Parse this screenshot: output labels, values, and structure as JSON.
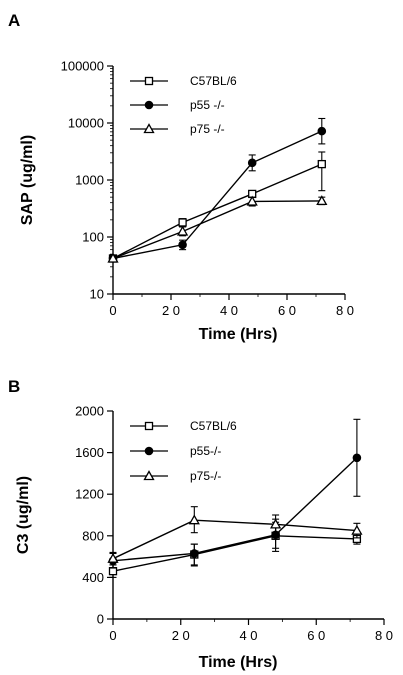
{
  "chart_data": [
    {
      "type": "line",
      "panel": "A",
      "xlabel": "Time (Hrs)",
      "ylabel": "SAP (ug/ml)",
      "xscale": "linear",
      "yscale": "log",
      "xlim": [
        0,
        80
      ],
      "ylim": [
        10,
        100000
      ],
      "xticks": [
        0,
        20,
        40,
        60,
        80
      ],
      "xtick_labels": [
        "0",
        "2 0",
        "4 0",
        "6 0",
        "8 0"
      ],
      "yticks": [
        10,
        100,
        1000,
        10000,
        100000
      ],
      "ytick_labels": [
        "10",
        "100",
        "1000",
        "10000",
        "100000"
      ],
      "legend_position": "top-left",
      "grid": false,
      "series": [
        {
          "name": "C57BL/6",
          "marker": "open-square",
          "x": [
            0,
            24,
            48,
            72
          ],
          "y": [
            42,
            180,
            570,
            1900
          ],
          "err_lo": [
            null,
            150,
            null,
            650
          ],
          "err_hi": [
            null,
            210,
            null,
            3100
          ]
        },
        {
          "name": "p55 -/-",
          "marker": "filled-circle",
          "x": [
            0,
            24,
            48,
            72
          ],
          "y": [
            42,
            73,
            2000,
            7200
          ],
          "err_lo": [
            null,
            60,
            1450,
            4300
          ],
          "err_hi": [
            null,
            88,
            2750,
            12000
          ]
        },
        {
          "name": "p75 -/-",
          "marker": "open-triangle",
          "x": [
            0,
            24,
            48,
            72
          ],
          "y": [
            42,
            125,
            420,
            430
          ],
          "err_lo": [
            null,
            105,
            350,
            370
          ],
          "err_hi": [
            null,
            150,
            500,
            500
          ]
        }
      ]
    },
    {
      "type": "line",
      "panel": "B",
      "xlabel": "Time (Hrs)",
      "ylabel": "C3 (ug/ml)",
      "xscale": "linear",
      "yscale": "linear",
      "xlim": [
        0,
        80
      ],
      "ylim": [
        0,
        2000
      ],
      "xticks": [
        0,
        20,
        40,
        60,
        80
      ],
      "xtick_labels": [
        "0",
        "2 0",
        "4 0",
        "6 0",
        "8 0"
      ],
      "yticks": [
        0,
        400,
        800,
        1200,
        1600,
        2000
      ],
      "ytick_labels": [
        "0",
        "400",
        "800",
        "1200",
        "1600",
        "2000"
      ],
      "legend_position": "top-left",
      "grid": false,
      "series": [
        {
          "name": "C57BL/6",
          "marker": "open-square",
          "x": [
            0,
            24,
            48,
            72
          ],
          "y": [
            460,
            620,
            800,
            770
          ],
          "err_lo": [
            400,
            510,
            680,
            720
          ],
          "err_hi": [
            520,
            720,
            930,
            830
          ]
        },
        {
          "name": "p55-/-",
          "marker": "filled-circle",
          "x": [
            0,
            24,
            48,
            72
          ],
          "y": [
            560,
            630,
            810,
            1550
          ],
          "err_lo": [
            490,
            520,
            650,
            1180
          ],
          "err_hi": [
            630,
            720,
            960,
            1920
          ]
        },
        {
          "name": "p75-/-",
          "marker": "open-triangle",
          "x": [
            0,
            24,
            48,
            72
          ],
          "y": [
            580,
            950,
            910,
            850
          ],
          "err_lo": [
            520,
            830,
            830,
            780
          ],
          "err_hi": [
            640,
            1080,
            1000,
            920
          ]
        }
      ]
    }
  ]
}
